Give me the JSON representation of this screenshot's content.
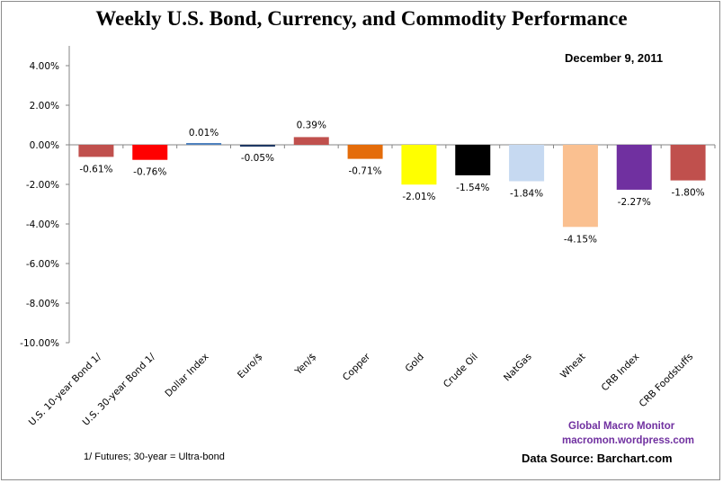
{
  "title": "Weekly U.S. Bond, Currency, and Commodity Performance",
  "date": "December 9, 2011",
  "footnote": "1/  Futures; 30-year = Ultra-bond",
  "credit": {
    "name": "Global Macro Monitor",
    "url": "macromon.wordpress.com"
  },
  "source": "Data Source:  Barchart.com",
  "chart_data": {
    "type": "bar",
    "title": "Weekly U.S. Bond, Currency, and Commodity Performance",
    "subtitle": "December 9, 2011",
    "xlabel": "",
    "ylabel": "",
    "ylim": [
      -10,
      5
    ],
    "yticks": [
      4,
      2,
      0,
      -2,
      -4,
      -6,
      -8,
      -10
    ],
    "ytick_labels": [
      "4.00%",
      "2.00%",
      "0.00%",
      "-2.00%",
      "-4.00%",
      "-6.00%",
      "-8.00%",
      "-10.00%"
    ],
    "grid": false,
    "legend": "none",
    "categories": [
      "U.S. 10-year Bond 1/",
      "U.S. 30-year Bond 1/",
      "Dollar Index",
      "Euro/$",
      "Yen/$",
      "Copper",
      "Gold",
      "Crude Oil",
      "NatGas",
      "Wheat",
      "CRB Index",
      "CRB Foodstuffs"
    ],
    "values": [
      -0.61,
      -0.76,
      0.01,
      -0.05,
      0.39,
      -0.71,
      -2.01,
      -1.54,
      -1.84,
      -4.15,
      -2.27,
      -1.8
    ],
    "data_labels": [
      "-0.61%",
      "-0.76%",
      "0.01%",
      "-0.05%",
      "0.39%",
      "-0.71%",
      "-2.01%",
      "-1.54%",
      "-1.84%",
      "-4.15%",
      "-2.27%",
      "-1.80%"
    ],
    "colors": [
      "#c0504d",
      "#ff0000",
      "#4f81bd",
      "#1f3864",
      "#c0504d",
      "#e46c0a",
      "#ffff00",
      "#000000",
      "#c6d9f1",
      "#fac090",
      "#7030a0",
      "#c0504d"
    ]
  }
}
